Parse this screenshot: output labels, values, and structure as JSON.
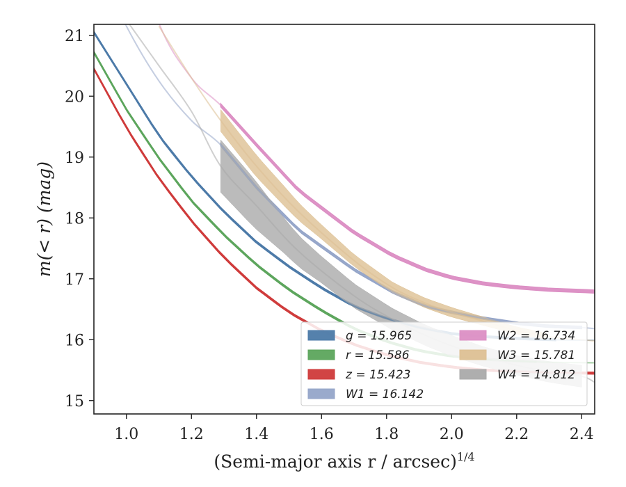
{
  "chart_data": {
    "type": "line",
    "title": "",
    "xlabel": "(Semi-major axis r / arcsec)",
    "xlabel_superscript": "1/4",
    "ylabel": "m(< r) (mag)",
    "xlim": [
      0.9,
      2.44
    ],
    "ylim": [
      21.18,
      14.78
    ],
    "y_inverted": true,
    "grid": false,
    "legend_position": "lower-right",
    "xticks": [
      "1.0",
      "1.2",
      "1.4",
      "1.6",
      "1.8",
      "2.0",
      "2.2",
      "2.4"
    ],
    "yticks": [
      "15",
      "16",
      "17",
      "18",
      "19",
      "20",
      "21"
    ],
    "series": [
      {
        "name": "g",
        "legend_label": "g = 15.965",
        "color": "#4c7aa8",
        "x": [
          0.9,
          1.0,
          1.1,
          1.2,
          1.3,
          1.4,
          1.5,
          1.6,
          1.7,
          1.8,
          1.9,
          2.0,
          2.1,
          2.2,
          2.3,
          2.44
        ],
        "y": [
          21.05,
          20.2,
          19.35,
          18.68,
          18.1,
          17.6,
          17.2,
          16.85,
          16.55,
          16.35,
          16.2,
          16.1,
          16.05,
          16.02,
          16.0,
          15.99
        ],
        "band_x": [
          0.9,
          2.32
        ],
        "band_width": 0.03
      },
      {
        "name": "r",
        "legend_label": "r = 15.586",
        "color": "#5ca55c",
        "x": [
          0.9,
          1.0,
          1.1,
          1.2,
          1.3,
          1.4,
          1.5,
          1.6,
          1.7,
          1.8,
          1.9,
          2.0,
          2.1,
          2.2,
          2.3,
          2.44
        ],
        "y": [
          20.72,
          19.78,
          18.98,
          18.28,
          17.72,
          17.23,
          16.82,
          16.48,
          16.18,
          15.97,
          15.82,
          15.73,
          15.68,
          15.65,
          15.63,
          15.62
        ],
        "band_x": [
          0.9,
          2.26
        ],
        "band_width": 0.03
      },
      {
        "name": "z",
        "legend_label": "z = 15.423",
        "color": "#cf3a3a",
        "x": [
          0.9,
          1.0,
          1.1,
          1.2,
          1.3,
          1.4,
          1.5,
          1.6,
          1.7,
          1.8,
          1.9,
          2.0,
          2.1,
          2.2,
          2.3,
          2.44
        ],
        "y": [
          20.45,
          19.48,
          18.65,
          17.95,
          17.35,
          16.85,
          16.45,
          16.15,
          15.92,
          15.75,
          15.63,
          15.55,
          15.5,
          15.48,
          15.46,
          15.45
        ],
        "band_x": [
          0.9,
          2.44
        ],
        "band_width": 0.03
      },
      {
        "name": "W1",
        "legend_label": "W1 = 16.142",
        "color": "#95a5c9",
        "x": [
          0.9,
          1.0,
          1.1,
          1.2,
          1.29,
          1.4,
          1.53,
          1.7,
          1.82,
          1.92,
          2.0,
          2.1,
          2.2,
          2.3,
          2.4,
          2.44
        ],
        "y": [
          22.3,
          21.15,
          20.25,
          19.6,
          19.2,
          18.5,
          17.8,
          17.15,
          16.78,
          16.55,
          16.45,
          16.35,
          16.27,
          16.22,
          16.2,
          16.18
        ],
        "band_x": [
          1.29,
          2.4
        ],
        "band_width": 0.04
      },
      {
        "name": "W2",
        "legend_label": "W2 = 16.734",
        "color": "#dc8fc4",
        "x": [
          1.0,
          1.1,
          1.2,
          1.29,
          1.4,
          1.53,
          1.7,
          1.82,
          1.92,
          2.0,
          2.1,
          2.2,
          2.3,
          2.4,
          2.44
        ],
        "y": [
          23.0,
          21.2,
          20.3,
          19.85,
          19.2,
          18.45,
          17.76,
          17.38,
          17.15,
          17.02,
          16.92,
          16.86,
          16.82,
          16.8,
          16.79
        ],
        "band_x": [
          1.29,
          2.44
        ],
        "band_width": 0.05
      },
      {
        "name": "W3",
        "legend_label": "W3 = 15.781",
        "color": "#ddc093",
        "x": [
          1.1,
          1.2,
          1.29,
          1.4,
          1.53,
          1.7,
          1.82,
          1.92,
          2.0,
          2.1,
          2.2,
          2.3,
          2.44
        ],
        "y": [
          21.15,
          20.3,
          19.6,
          18.85,
          18.1,
          17.3,
          16.85,
          16.6,
          16.45,
          16.3,
          16.15,
          16.05,
          15.98
        ],
        "band_x": [
          1.29,
          2.29
        ],
        "band_halfwidths": [
          0.18,
          0.18,
          0.16,
          0.12,
          0.1,
          0.09,
          0.08,
          0.08,
          0.07,
          0.06,
          0.05
        ],
        "band_width": 0.15
      },
      {
        "name": "W4",
        "legend_label": "W4 = 14.812",
        "color": "#aaaaaa",
        "x": [
          1.0,
          1.1,
          1.2,
          1.29,
          1.4,
          1.53,
          1.7,
          1.82,
          1.92,
          2.0,
          2.1,
          2.2,
          2.3,
          2.4,
          2.44
        ],
        "y": [
          21.25,
          20.5,
          19.75,
          18.85,
          18.2,
          17.45,
          16.72,
          16.33,
          16.07,
          15.9,
          15.72,
          15.58,
          15.47,
          15.4,
          15.3
        ],
        "band_x": [
          1.29,
          2.4
        ],
        "band_halfwidths": [
          0.43,
          0.4,
          0.28,
          0.22,
          0.2,
          0.18,
          0.17,
          0.17,
          0.16,
          0.16,
          0.17,
          0.18
        ],
        "band_width": 0.3
      }
    ]
  }
}
